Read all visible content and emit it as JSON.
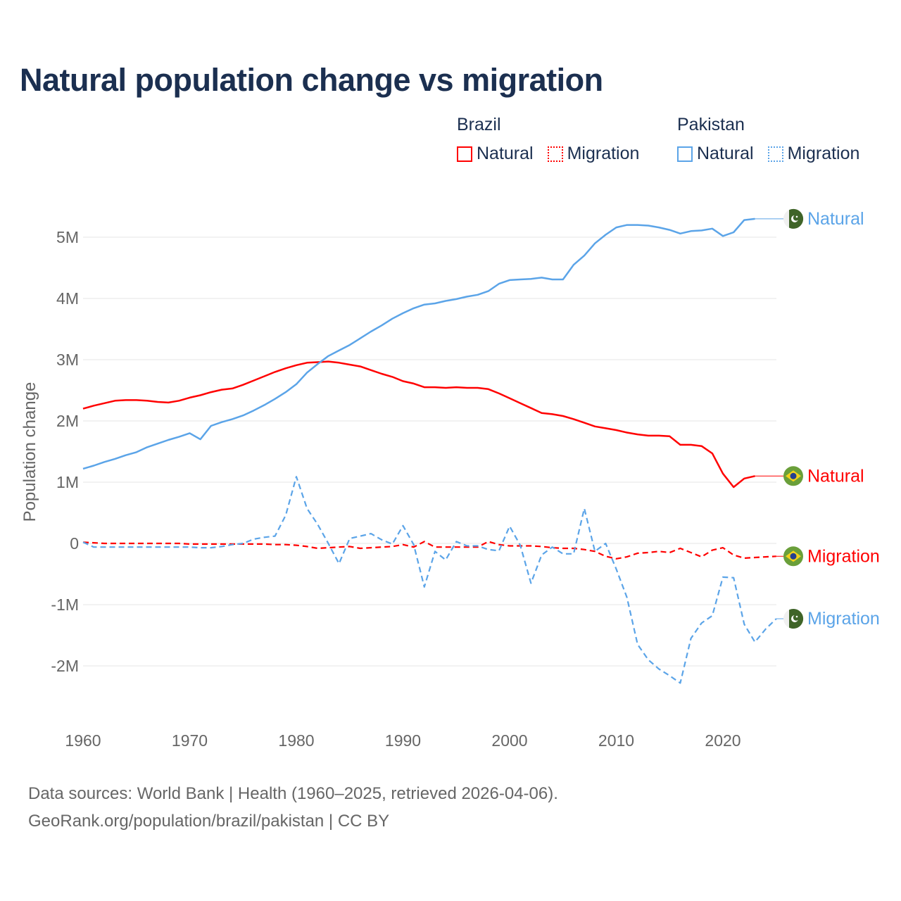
{
  "colors": {
    "brazil": "#ff0000",
    "pakistan": "#5ba4e8",
    "title": "#1b2f50"
  },
  "footer": {
    "line1": "Data sources: World Bank | Health (1960–2025, retrieved 2026-04-06).",
    "line2": "GeoRank.org/population/brazil/pakistan | CC BY"
  },
  "chart_data": {
    "type": "line",
    "title": "Natural population change vs migration",
    "xlabel": "",
    "ylabel": "Population change",
    "ylim": [
      -2.6,
      5.6
    ],
    "xlim": [
      1960,
      2025
    ],
    "grid": true,
    "legend_placement": "top-right",
    "legend": {
      "groups": [
        {
          "name": "Brazil",
          "items": [
            "Natural",
            "Migration"
          ]
        },
        {
          "name": "Pakistan",
          "items": [
            "Natural",
            "Migration"
          ]
        }
      ]
    },
    "y_ticks": [
      {
        "value": 5,
        "label": "5M"
      },
      {
        "value": 4,
        "label": "4M"
      },
      {
        "value": 3,
        "label": "3M"
      },
      {
        "value": 2,
        "label": "2M"
      },
      {
        "value": 1,
        "label": "1M"
      },
      {
        "value": 0,
        "label": "0"
      },
      {
        "value": -1,
        "label": "-1M"
      },
      {
        "value": -2,
        "label": "-2M"
      }
    ],
    "x_ticks": [
      {
        "value": 1960,
        "label": "1960"
      },
      {
        "value": 1970,
        "label": "1970"
      },
      {
        "value": 1980,
        "label": "1980"
      },
      {
        "value": 1990,
        "label": "1990"
      },
      {
        "value": 2000,
        "label": "2000"
      },
      {
        "value": 2010,
        "label": "2010"
      },
      {
        "value": 2020,
        "label": "2020"
      }
    ],
    "units": "millions",
    "series": [
      {
        "name": "Brazil Natural",
        "country": "brazil",
        "kind": "natural",
        "label": "Natural",
        "start": 1960,
        "values": [
          2.2,
          2.25,
          2.29,
          2.33,
          2.34,
          2.34,
          2.33,
          2.31,
          2.3,
          2.33,
          2.38,
          2.42,
          2.47,
          2.51,
          2.53,
          2.59,
          2.66,
          2.73,
          2.8,
          2.86,
          2.91,
          2.95,
          2.96,
          2.97,
          2.95,
          2.92,
          2.89,
          2.83,
          2.77,
          2.72,
          2.65,
          2.61,
          2.55,
          2.55,
          2.54,
          2.55,
          2.54,
          2.54,
          2.52,
          2.45,
          2.37,
          2.29,
          2.21,
          2.13,
          2.11,
          2.08,
          2.03,
          1.97,
          1.91,
          1.88,
          1.85,
          1.81,
          1.78,
          1.76,
          1.76,
          1.75,
          1.61,
          1.61,
          1.59,
          1.47,
          1.14,
          0.92,
          1.06,
          1.1
        ]
      },
      {
        "name": "Brazil Migration",
        "country": "brazil",
        "kind": "migration",
        "label": "Migration",
        "start": 1960,
        "values": [
          0.02,
          0.01,
          0,
          0,
          0,
          0,
          0,
          0,
          0,
          0,
          -0.01,
          -0.01,
          -0.01,
          -0.01,
          -0.01,
          -0.01,
          -0.01,
          -0.01,
          -0.02,
          -0.02,
          -0.03,
          -0.05,
          -0.08,
          -0.07,
          -0.06,
          -0.05,
          -0.08,
          -0.07,
          -0.06,
          -0.05,
          -0.02,
          -0.06,
          0.03,
          -0.06,
          -0.06,
          -0.06,
          -0.06,
          -0.06,
          0.03,
          -0.02,
          -0.04,
          -0.04,
          -0.04,
          -0.05,
          -0.07,
          -0.08,
          -0.08,
          -0.1,
          -0.13,
          -0.21,
          -0.25,
          -0.22,
          -0.16,
          -0.15,
          -0.13,
          -0.15,
          -0.08,
          -0.15,
          -0.22,
          -0.11,
          -0.07,
          -0.19,
          -0.24,
          -0.23,
          -0.22,
          -0.21
        ]
      },
      {
        "name": "Pakistan Natural",
        "country": "pakistan",
        "kind": "natural",
        "label": "Natural",
        "start": 1960,
        "values": [
          1.22,
          1.27,
          1.33,
          1.38,
          1.44,
          1.49,
          1.57,
          1.63,
          1.69,
          1.74,
          1.8,
          1.7,
          1.92,
          1.98,
          2.03,
          2.09,
          2.17,
          2.26,
          2.36,
          2.47,
          2.6,
          2.79,
          2.93,
          3.06,
          3.15,
          3.24,
          3.35,
          3.46,
          3.56,
          3.67,
          3.76,
          3.84,
          3.9,
          3.92,
          3.96,
          3.99,
          4.03,
          4.06,
          4.12,
          4.24,
          4.3,
          4.31,
          4.32,
          4.34,
          4.31,
          4.31,
          4.55,
          4.7,
          4.9,
          5.04,
          5.16,
          5.2,
          5.2,
          5.19,
          5.16,
          5.12,
          5.06,
          5.1,
          5.11,
          5.14,
          5.02,
          5.08,
          5.28,
          5.3
        ]
      },
      {
        "name": "Pakistan Migration",
        "country": "pakistan",
        "kind": "migration",
        "label": "Migration",
        "start": 1960,
        "values": [
          0.02,
          -0.06,
          -0.06,
          -0.06,
          -0.06,
          -0.06,
          -0.06,
          -0.06,
          -0.06,
          -0.06,
          -0.06,
          -0.07,
          -0.07,
          -0.05,
          -0.02,
          0.0,
          0.07,
          0.1,
          0.12,
          0.46,
          1.09,
          0.57,
          0.31,
          0.0,
          -0.33,
          0.08,
          0.12,
          0.16,
          0.06,
          -0.01,
          0.29,
          -0.02,
          -0.71,
          -0.13,
          -0.27,
          0.03,
          -0.04,
          -0.04,
          -0.1,
          -0.12,
          0.28,
          -0.03,
          -0.65,
          -0.19,
          -0.06,
          -0.17,
          -0.17,
          0.57,
          -0.13,
          0.0,
          -0.42,
          -0.88,
          -1.65,
          -1.9,
          -2.05,
          -2.16,
          -2.28,
          -1.55,
          -1.3,
          -1.18,
          -0.55,
          -0.56,
          -1.32,
          -1.61,
          -1.4,
          -1.23
        ]
      }
    ]
  }
}
